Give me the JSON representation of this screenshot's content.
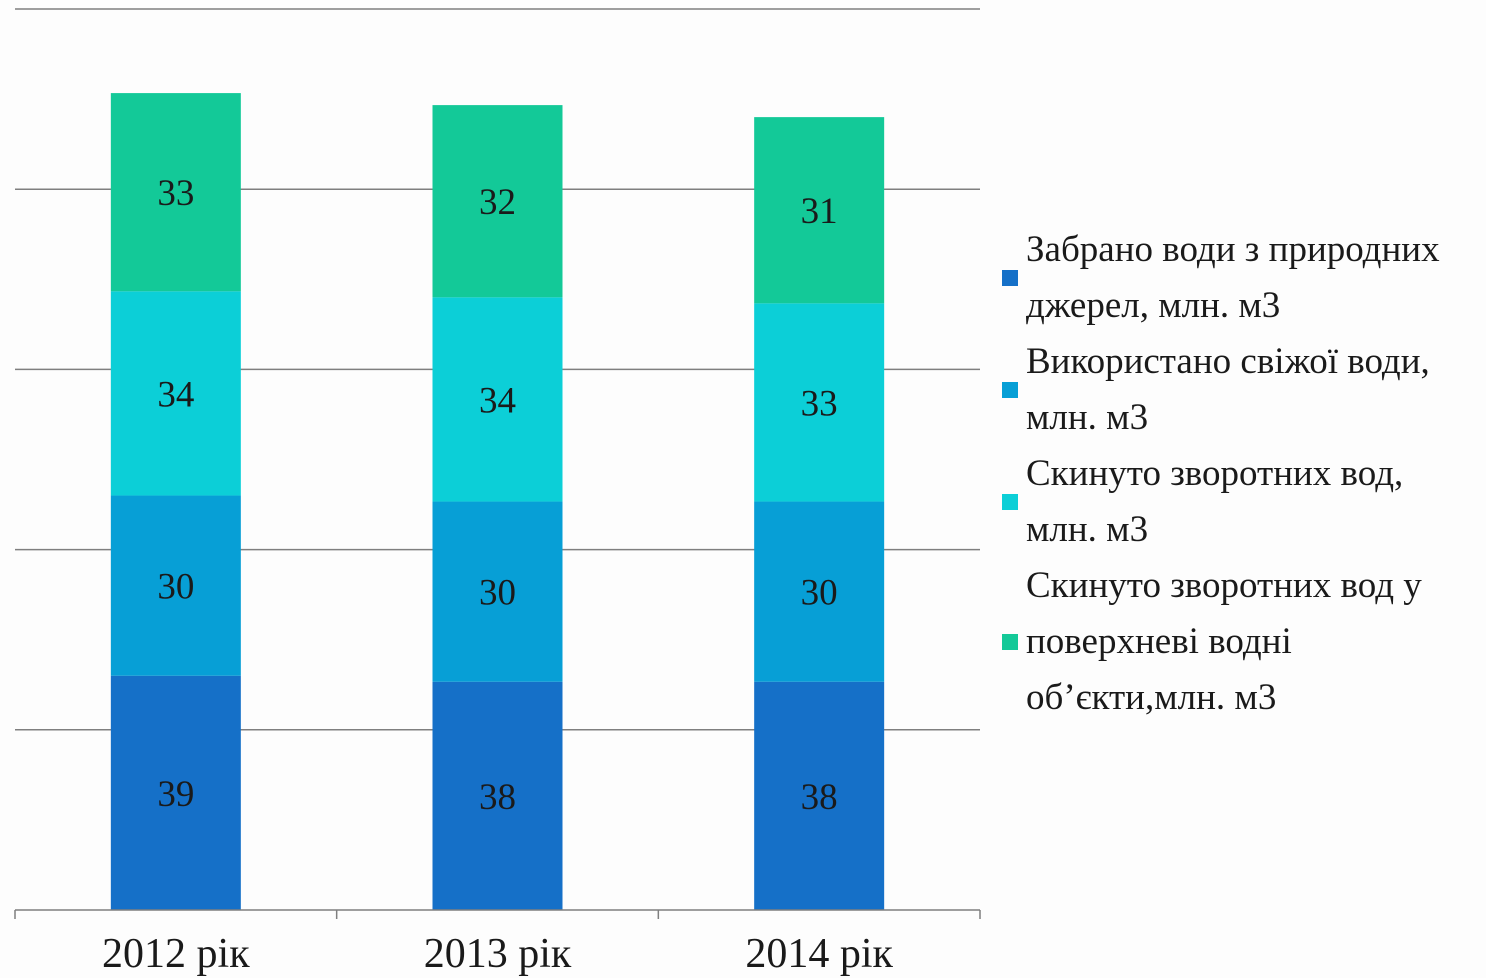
{
  "chart_data": {
    "type": "bar",
    "stacked": true,
    "categories": [
      "2012 рік",
      "2013 рік",
      "2014 рік"
    ],
    "series": [
      {
        "name": "Забрано води з природних джерел, млн. м3",
        "values": [
          39,
          38,
          38
        ],
        "color": "#1570c8"
      },
      {
        "name": "Використано свіжої води, млн. м3",
        "values": [
          30,
          30,
          30
        ],
        "color": "#079fd6"
      },
      {
        "name": "Скинуто зворотних вод, млн. м3",
        "values": [
          34,
          34,
          33
        ],
        "color": "#0ccfd7"
      },
      {
        "name": "Скинуто зворотних вод у поверхневі водні об’єкти,млн. м3",
        "values": [
          33,
          32,
          31
        ],
        "color": "#13c998"
      }
    ],
    "ylim": [
      0,
      150
    ],
    "grid": true,
    "legend_position": "right"
  }
}
